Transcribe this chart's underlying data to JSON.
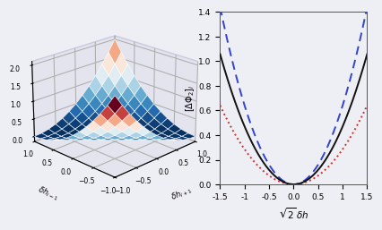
{
  "left_xlabel": "$\\delta h_{i+1}$",
  "left_ylabel": "$\\delta h_{i-1}$",
  "left_zlabel": "$[\\Delta\\Phi_2]_i$",
  "right_xlabel": "$\\sqrt{2}\\,\\delta h$",
  "right_ylabel": "$[\\Delta\\Phi_2]_i$",
  "right_ylim": [
    0.0,
    1.4
  ],
  "right_xlim": [
    -1.5,
    1.5
  ],
  "surface_xlim": [
    -1.0,
    1.0
  ],
  "surface_ylim": [
    -1.0,
    1.0
  ],
  "surface_zlim": [
    -0.15,
    2.1
  ],
  "bg_color": "#eeeef5",
  "pane_color": "#dcdce8",
  "line_solid_color": "#111111",
  "line_dashed_color": "#3344cc",
  "line_dotted_color": "#cc3333",
  "solid_coeff": 0.47,
  "dashed_coeff": 0.64,
  "dotted_coeff": 0.285
}
